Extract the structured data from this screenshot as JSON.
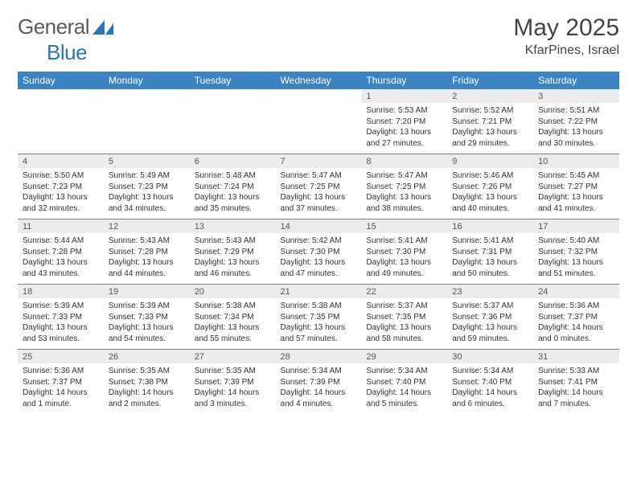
{
  "brand": {
    "word1": "General",
    "word2": "Blue",
    "logo_fill": "#2a74b8"
  },
  "header": {
    "month_title": "May 2025",
    "location": "KfarPines, Israel"
  },
  "colors": {
    "header_bg": "#3b83c3",
    "header_text": "#ffffff",
    "daynum_bg": "#ececec",
    "daynum_text": "#555555",
    "body_text": "#333333",
    "rule": "#808080"
  },
  "dow": [
    "Sunday",
    "Monday",
    "Tuesday",
    "Wednesday",
    "Thursday",
    "Friday",
    "Saturday"
  ],
  "weeks": [
    [
      null,
      null,
      null,
      null,
      {
        "n": "1",
        "sr": "Sunrise: 5:53 AM",
        "ss": "Sunset: 7:20 PM",
        "d1": "Daylight: 13 hours",
        "d2": "and 27 minutes."
      },
      {
        "n": "2",
        "sr": "Sunrise: 5:52 AM",
        "ss": "Sunset: 7:21 PM",
        "d1": "Daylight: 13 hours",
        "d2": "and 29 minutes."
      },
      {
        "n": "3",
        "sr": "Sunrise: 5:51 AM",
        "ss": "Sunset: 7:22 PM",
        "d1": "Daylight: 13 hours",
        "d2": "and 30 minutes."
      }
    ],
    [
      {
        "n": "4",
        "sr": "Sunrise: 5:50 AM",
        "ss": "Sunset: 7:23 PM",
        "d1": "Daylight: 13 hours",
        "d2": "and 32 minutes."
      },
      {
        "n": "5",
        "sr": "Sunrise: 5:49 AM",
        "ss": "Sunset: 7:23 PM",
        "d1": "Daylight: 13 hours",
        "d2": "and 34 minutes."
      },
      {
        "n": "6",
        "sr": "Sunrise: 5:48 AM",
        "ss": "Sunset: 7:24 PM",
        "d1": "Daylight: 13 hours",
        "d2": "and 35 minutes."
      },
      {
        "n": "7",
        "sr": "Sunrise: 5:47 AM",
        "ss": "Sunset: 7:25 PM",
        "d1": "Daylight: 13 hours",
        "d2": "and 37 minutes."
      },
      {
        "n": "8",
        "sr": "Sunrise: 5:47 AM",
        "ss": "Sunset: 7:25 PM",
        "d1": "Daylight: 13 hours",
        "d2": "and 38 minutes."
      },
      {
        "n": "9",
        "sr": "Sunrise: 5:46 AM",
        "ss": "Sunset: 7:26 PM",
        "d1": "Daylight: 13 hours",
        "d2": "and 40 minutes."
      },
      {
        "n": "10",
        "sr": "Sunrise: 5:45 AM",
        "ss": "Sunset: 7:27 PM",
        "d1": "Daylight: 13 hours",
        "d2": "and 41 minutes."
      }
    ],
    [
      {
        "n": "11",
        "sr": "Sunrise: 5:44 AM",
        "ss": "Sunset: 7:28 PM",
        "d1": "Daylight: 13 hours",
        "d2": "and 43 minutes."
      },
      {
        "n": "12",
        "sr": "Sunrise: 5:43 AM",
        "ss": "Sunset: 7:28 PM",
        "d1": "Daylight: 13 hours",
        "d2": "and 44 minutes."
      },
      {
        "n": "13",
        "sr": "Sunrise: 5:43 AM",
        "ss": "Sunset: 7:29 PM",
        "d1": "Daylight: 13 hours",
        "d2": "and 46 minutes."
      },
      {
        "n": "14",
        "sr": "Sunrise: 5:42 AM",
        "ss": "Sunset: 7:30 PM",
        "d1": "Daylight: 13 hours",
        "d2": "and 47 minutes."
      },
      {
        "n": "15",
        "sr": "Sunrise: 5:41 AM",
        "ss": "Sunset: 7:30 PM",
        "d1": "Daylight: 13 hours",
        "d2": "and 49 minutes."
      },
      {
        "n": "16",
        "sr": "Sunrise: 5:41 AM",
        "ss": "Sunset: 7:31 PM",
        "d1": "Daylight: 13 hours",
        "d2": "and 50 minutes."
      },
      {
        "n": "17",
        "sr": "Sunrise: 5:40 AM",
        "ss": "Sunset: 7:32 PM",
        "d1": "Daylight: 13 hours",
        "d2": "and 51 minutes."
      }
    ],
    [
      {
        "n": "18",
        "sr": "Sunrise: 5:39 AM",
        "ss": "Sunset: 7:33 PM",
        "d1": "Daylight: 13 hours",
        "d2": "and 53 minutes."
      },
      {
        "n": "19",
        "sr": "Sunrise: 5:39 AM",
        "ss": "Sunset: 7:33 PM",
        "d1": "Daylight: 13 hours",
        "d2": "and 54 minutes."
      },
      {
        "n": "20",
        "sr": "Sunrise: 5:38 AM",
        "ss": "Sunset: 7:34 PM",
        "d1": "Daylight: 13 hours",
        "d2": "and 55 minutes."
      },
      {
        "n": "21",
        "sr": "Sunrise: 5:38 AM",
        "ss": "Sunset: 7:35 PM",
        "d1": "Daylight: 13 hours",
        "d2": "and 57 minutes."
      },
      {
        "n": "22",
        "sr": "Sunrise: 5:37 AM",
        "ss": "Sunset: 7:35 PM",
        "d1": "Daylight: 13 hours",
        "d2": "and 58 minutes."
      },
      {
        "n": "23",
        "sr": "Sunrise: 5:37 AM",
        "ss": "Sunset: 7:36 PM",
        "d1": "Daylight: 13 hours",
        "d2": "and 59 minutes."
      },
      {
        "n": "24",
        "sr": "Sunrise: 5:36 AM",
        "ss": "Sunset: 7:37 PM",
        "d1": "Daylight: 14 hours",
        "d2": "and 0 minutes."
      }
    ],
    [
      {
        "n": "25",
        "sr": "Sunrise: 5:36 AM",
        "ss": "Sunset: 7:37 PM",
        "d1": "Daylight: 14 hours",
        "d2": "and 1 minute."
      },
      {
        "n": "26",
        "sr": "Sunrise: 5:35 AM",
        "ss": "Sunset: 7:38 PM",
        "d1": "Daylight: 14 hours",
        "d2": "and 2 minutes."
      },
      {
        "n": "27",
        "sr": "Sunrise: 5:35 AM",
        "ss": "Sunset: 7:39 PM",
        "d1": "Daylight: 14 hours",
        "d2": "and 3 minutes."
      },
      {
        "n": "28",
        "sr": "Sunrise: 5:34 AM",
        "ss": "Sunset: 7:39 PM",
        "d1": "Daylight: 14 hours",
        "d2": "and 4 minutes."
      },
      {
        "n": "29",
        "sr": "Sunrise: 5:34 AM",
        "ss": "Sunset: 7:40 PM",
        "d1": "Daylight: 14 hours",
        "d2": "and 5 minutes."
      },
      {
        "n": "30",
        "sr": "Sunrise: 5:34 AM",
        "ss": "Sunset: 7:40 PM",
        "d1": "Daylight: 14 hours",
        "d2": "and 6 minutes."
      },
      {
        "n": "31",
        "sr": "Sunrise: 5:33 AM",
        "ss": "Sunset: 7:41 PM",
        "d1": "Daylight: 14 hours",
        "d2": "and 7 minutes."
      }
    ]
  ]
}
